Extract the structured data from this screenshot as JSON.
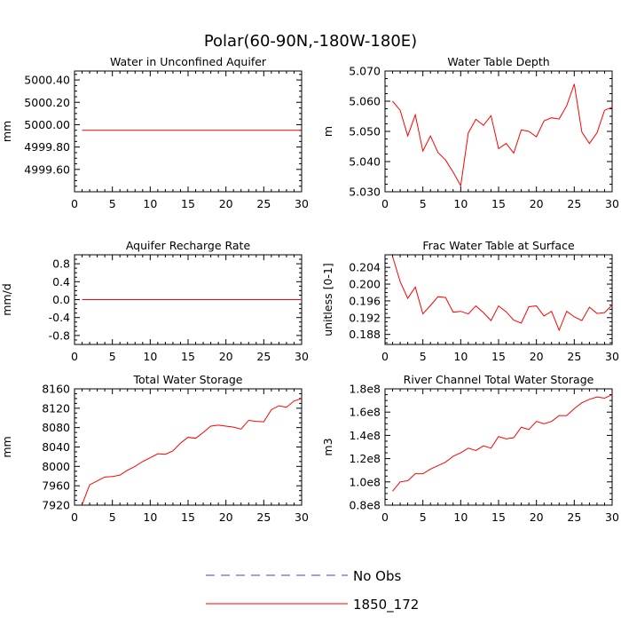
{
  "title": "Polar(60-90N,-180W-180E)",
  "colors": {
    "model": "#ff0000",
    "obs": "#4444aa",
    "axis": "#000000"
  },
  "legend": {
    "entries": [
      {
        "label": "No Obs",
        "style": "dashed",
        "color": "#4444aa"
      },
      {
        "label": "1850_172",
        "style": "solid",
        "color": "#ff0000"
      }
    ]
  },
  "chart_data": [
    {
      "type": "line",
      "title": "Water in Unconfined Aquifer",
      "ylabel": "mm",
      "xlim": [
        0,
        30
      ],
      "ylim": [
        4999.4,
        5000.48
      ],
      "xticks": [
        "0",
        "5",
        "10",
        "15",
        "20",
        "25",
        "30"
      ],
      "yticks": [
        {
          "v": 4999.6,
          "label": "4999.60"
        },
        {
          "v": 4999.8,
          "label": "4999.80"
        },
        {
          "v": 5000.0,
          "label": "5000.00"
        },
        {
          "v": 5000.2,
          "label": "5000.20"
        },
        {
          "v": 5000.4,
          "label": "5000.40"
        }
      ],
      "series": [
        {
          "name": "1850_172",
          "x": [
            1,
            30
          ],
          "y": [
            4999.95,
            4999.95
          ]
        }
      ]
    },
    {
      "type": "line",
      "title": "Water Table Depth",
      "ylabel": "m",
      "xlim": [
        0,
        30
      ],
      "ylim": [
        5.03,
        5.07
      ],
      "xticks": [
        "0",
        "5",
        "10",
        "15",
        "20",
        "25",
        "30"
      ],
      "yticks": [
        {
          "v": 5.03,
          "label": "5.030"
        },
        {
          "v": 5.04,
          "label": "5.040"
        },
        {
          "v": 5.05,
          "label": "5.050"
        },
        {
          "v": 5.06,
          "label": "5.060"
        },
        {
          "v": 5.07,
          "label": "5.070"
        }
      ],
      "series": [
        {
          "name": "1850_172",
          "x": [
            1,
            2,
            3,
            4,
            5,
            6,
            7,
            8,
            9,
            10,
            11,
            12,
            13,
            14,
            15,
            16,
            17,
            18,
            19,
            20,
            21,
            22,
            23,
            24,
            25,
            26,
            27,
            28,
            29,
            30
          ],
          "y": [
            5.06,
            5.057,
            5.0485,
            5.0555,
            5.0435,
            5.0485,
            5.043,
            5.0405,
            5.0365,
            5.032,
            5.0495,
            5.054,
            5.052,
            5.0552,
            5.0443,
            5.046,
            5.0428,
            5.0505,
            5.05,
            5.0482,
            5.0535,
            5.0545,
            5.0541,
            5.0585,
            5.0657,
            5.0498,
            5.046,
            5.0495,
            5.057,
            5.058
          ]
        }
      ]
    },
    {
      "type": "line",
      "title": "Aquifer Recharge Rate",
      "ylabel": "mm/d",
      "xlim": [
        0,
        30
      ],
      "ylim": [
        -1.0,
        1.0
      ],
      "xticks": [
        "0",
        "5",
        "10",
        "15",
        "20",
        "25",
        "30"
      ],
      "yticks": [
        {
          "v": -0.8,
          "label": "-0.8"
        },
        {
          "v": -0.4,
          "label": "-0.4"
        },
        {
          "v": 0.0,
          "label": "0.0"
        },
        {
          "v": 0.4,
          "label": "0.4"
        },
        {
          "v": 0.8,
          "label": "0.8"
        }
      ],
      "series": [
        {
          "name": "1850_172",
          "x": [
            1,
            30
          ],
          "y": [
            0.0,
            0.0
          ]
        }
      ]
    },
    {
      "type": "line",
      "title": "Frac Water Table at Surface",
      "ylabel": "unitless [0-1]",
      "xlim": [
        0,
        30
      ],
      "ylim": [
        0.1856,
        0.207
      ],
      "xticks": [
        "0",
        "5",
        "10",
        "15",
        "20",
        "25",
        "30"
      ],
      "yticks": [
        {
          "v": 0.188,
          "label": "0.188"
        },
        {
          "v": 0.192,
          "label": "0.192"
        },
        {
          "v": 0.196,
          "label": "0.196"
        },
        {
          "v": 0.2,
          "label": "0.200"
        },
        {
          "v": 0.204,
          "label": "0.204"
        }
      ],
      "series": [
        {
          "name": "1850_172",
          "x": [
            1,
            2,
            3,
            4,
            5,
            6,
            7,
            8,
            9,
            10,
            11,
            12,
            13,
            14,
            15,
            16,
            17,
            18,
            19,
            20,
            21,
            22,
            23,
            24,
            25,
            26,
            27,
            28,
            29,
            30
          ],
          "y": [
            0.2066,
            0.2006,
            0.1966,
            0.1993,
            0.1929,
            0.1949,
            0.197,
            0.1968,
            0.1933,
            0.1935,
            0.1929,
            0.1948,
            0.1932,
            0.1913,
            0.1948,
            0.1934,
            0.1914,
            0.1907,
            0.1946,
            0.1948,
            0.1924,
            0.1935,
            0.189,
            0.1935,
            0.1922,
            0.1913,
            0.1945,
            0.193,
            0.1932,
            0.195
          ]
        }
      ]
    },
    {
      "type": "line",
      "title": "Total Water Storage",
      "ylabel": "mm",
      "xlim": [
        0,
        30
      ],
      "ylim": [
        7920,
        8160
      ],
      "xticks": [
        "0",
        "5",
        "10",
        "15",
        "20",
        "25",
        "30"
      ],
      "yticks": [
        {
          "v": 7920,
          "label": "7920"
        },
        {
          "v": 7960,
          "label": "7960"
        },
        {
          "v": 8000,
          "label": "8000"
        },
        {
          "v": 8040,
          "label": "8040"
        },
        {
          "v": 8080,
          "label": "8080"
        },
        {
          "v": 8120,
          "label": "8120"
        },
        {
          "v": 8160,
          "label": "8160"
        }
      ],
      "series": [
        {
          "name": "1850_172",
          "x": [
            1,
            2,
            3,
            4,
            5,
            6,
            7,
            8,
            9,
            10,
            11,
            12,
            13,
            14,
            15,
            16,
            17,
            18,
            19,
            20,
            21,
            22,
            23,
            24,
            25,
            26,
            27,
            28,
            29,
            30
          ],
          "y": [
            7921,
            7962,
            7970,
            7978,
            7979,
            7982,
            7992,
            8000,
            8010,
            8018,
            8026,
            8025,
            8032,
            8048,
            8060,
            8058,
            8070,
            8083,
            8085,
            8083,
            8081,
            8077,
            8095,
            8093,
            8092,
            8117,
            8125,
            8122,
            8135,
            8140
          ]
        }
      ]
    },
    {
      "type": "line",
      "title": "River Channel Total Water Storage",
      "ylabel": "m3",
      "xlim": [
        0,
        30
      ],
      "ylim": [
        0.8,
        1.8
      ],
      "xticks": [
        "0",
        "5",
        "10",
        "15",
        "20",
        "25",
        "30"
      ],
      "yticks": [
        {
          "v": 0.8,
          "label": "0.8e8"
        },
        {
          "v": 1.0,
          "label": "1.0e8"
        },
        {
          "v": 1.2,
          "label": "1.2e8"
        },
        {
          "v": 1.4,
          "label": "1.4e8"
        },
        {
          "v": 1.6,
          "label": "1.6e8"
        },
        {
          "v": 1.8,
          "label": "1.8e8"
        }
      ],
      "series": [
        {
          "name": "1850_172",
          "x": [
            1,
            2,
            3,
            4,
            5,
            6,
            7,
            8,
            9,
            10,
            11,
            12,
            13,
            14,
            15,
            16,
            17,
            18,
            19,
            20,
            21,
            22,
            23,
            24,
            25,
            26,
            27,
            28,
            29,
            30
          ],
          "y": [
            0.92,
            1.0,
            1.01,
            1.07,
            1.07,
            1.11,
            1.14,
            1.17,
            1.22,
            1.25,
            1.29,
            1.27,
            1.31,
            1.29,
            1.39,
            1.37,
            1.38,
            1.47,
            1.45,
            1.52,
            1.5,
            1.52,
            1.57,
            1.57,
            1.63,
            1.68,
            1.71,
            1.73,
            1.72,
            1.75
          ]
        }
      ]
    }
  ]
}
